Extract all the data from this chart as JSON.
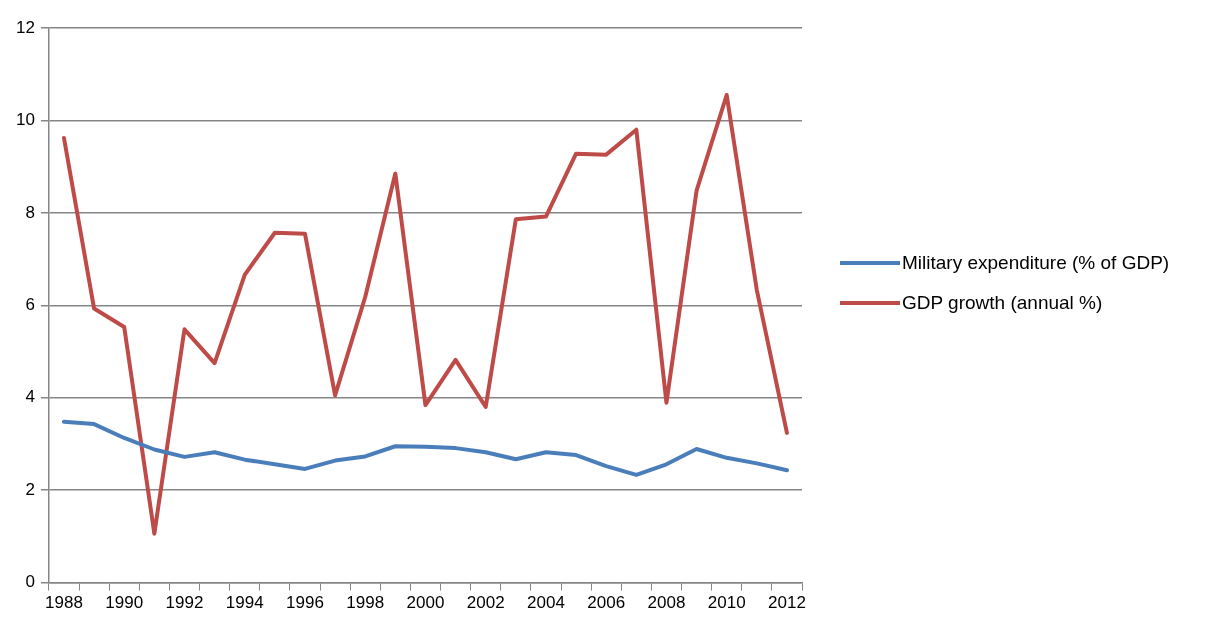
{
  "chart_data": {
    "type": "line",
    "categories": [
      "1988",
      null,
      "1990",
      null,
      "1992",
      null,
      "1994",
      null,
      "1996",
      null,
      "1998",
      null,
      "2000",
      null,
      "2002",
      null,
      "2004",
      null,
      "2006",
      null,
      "2008",
      null,
      "2010",
      null,
      "2012"
    ],
    "series": [
      {
        "name": "Military expenditure (% of GDP)",
        "color": "#4a7ebb",
        "values": [
          3.48,
          3.43,
          3.13,
          2.88,
          2.72,
          2.82,
          2.66,
          2.56,
          2.46,
          2.64,
          2.73,
          2.95,
          2.94,
          2.91,
          2.82,
          2.67,
          2.82,
          2.76,
          2.52,
          2.33,
          2.56,
          2.89,
          2.7,
          2.58,
          2.43
        ]
      },
      {
        "name": "GDP growth (annual %)",
        "color": "#be4b48",
        "values": [
          9.62,
          5.93,
          5.53,
          1.06,
          5.48,
          4.75,
          6.66,
          7.57,
          7.55,
          4.05,
          6.18,
          8.85,
          3.84,
          4.82,
          3.8,
          7.86,
          7.92,
          9.28,
          9.26,
          9.8,
          3.89,
          8.48,
          10.55,
          6.33,
          3.24
        ]
      }
    ],
    "ylim": [
      0,
      12
    ],
    "yticks": [
      0,
      2,
      4,
      6,
      8,
      10,
      12
    ],
    "grid": "y",
    "legend": "right",
    "marker": "none",
    "line_style": "solid"
  }
}
